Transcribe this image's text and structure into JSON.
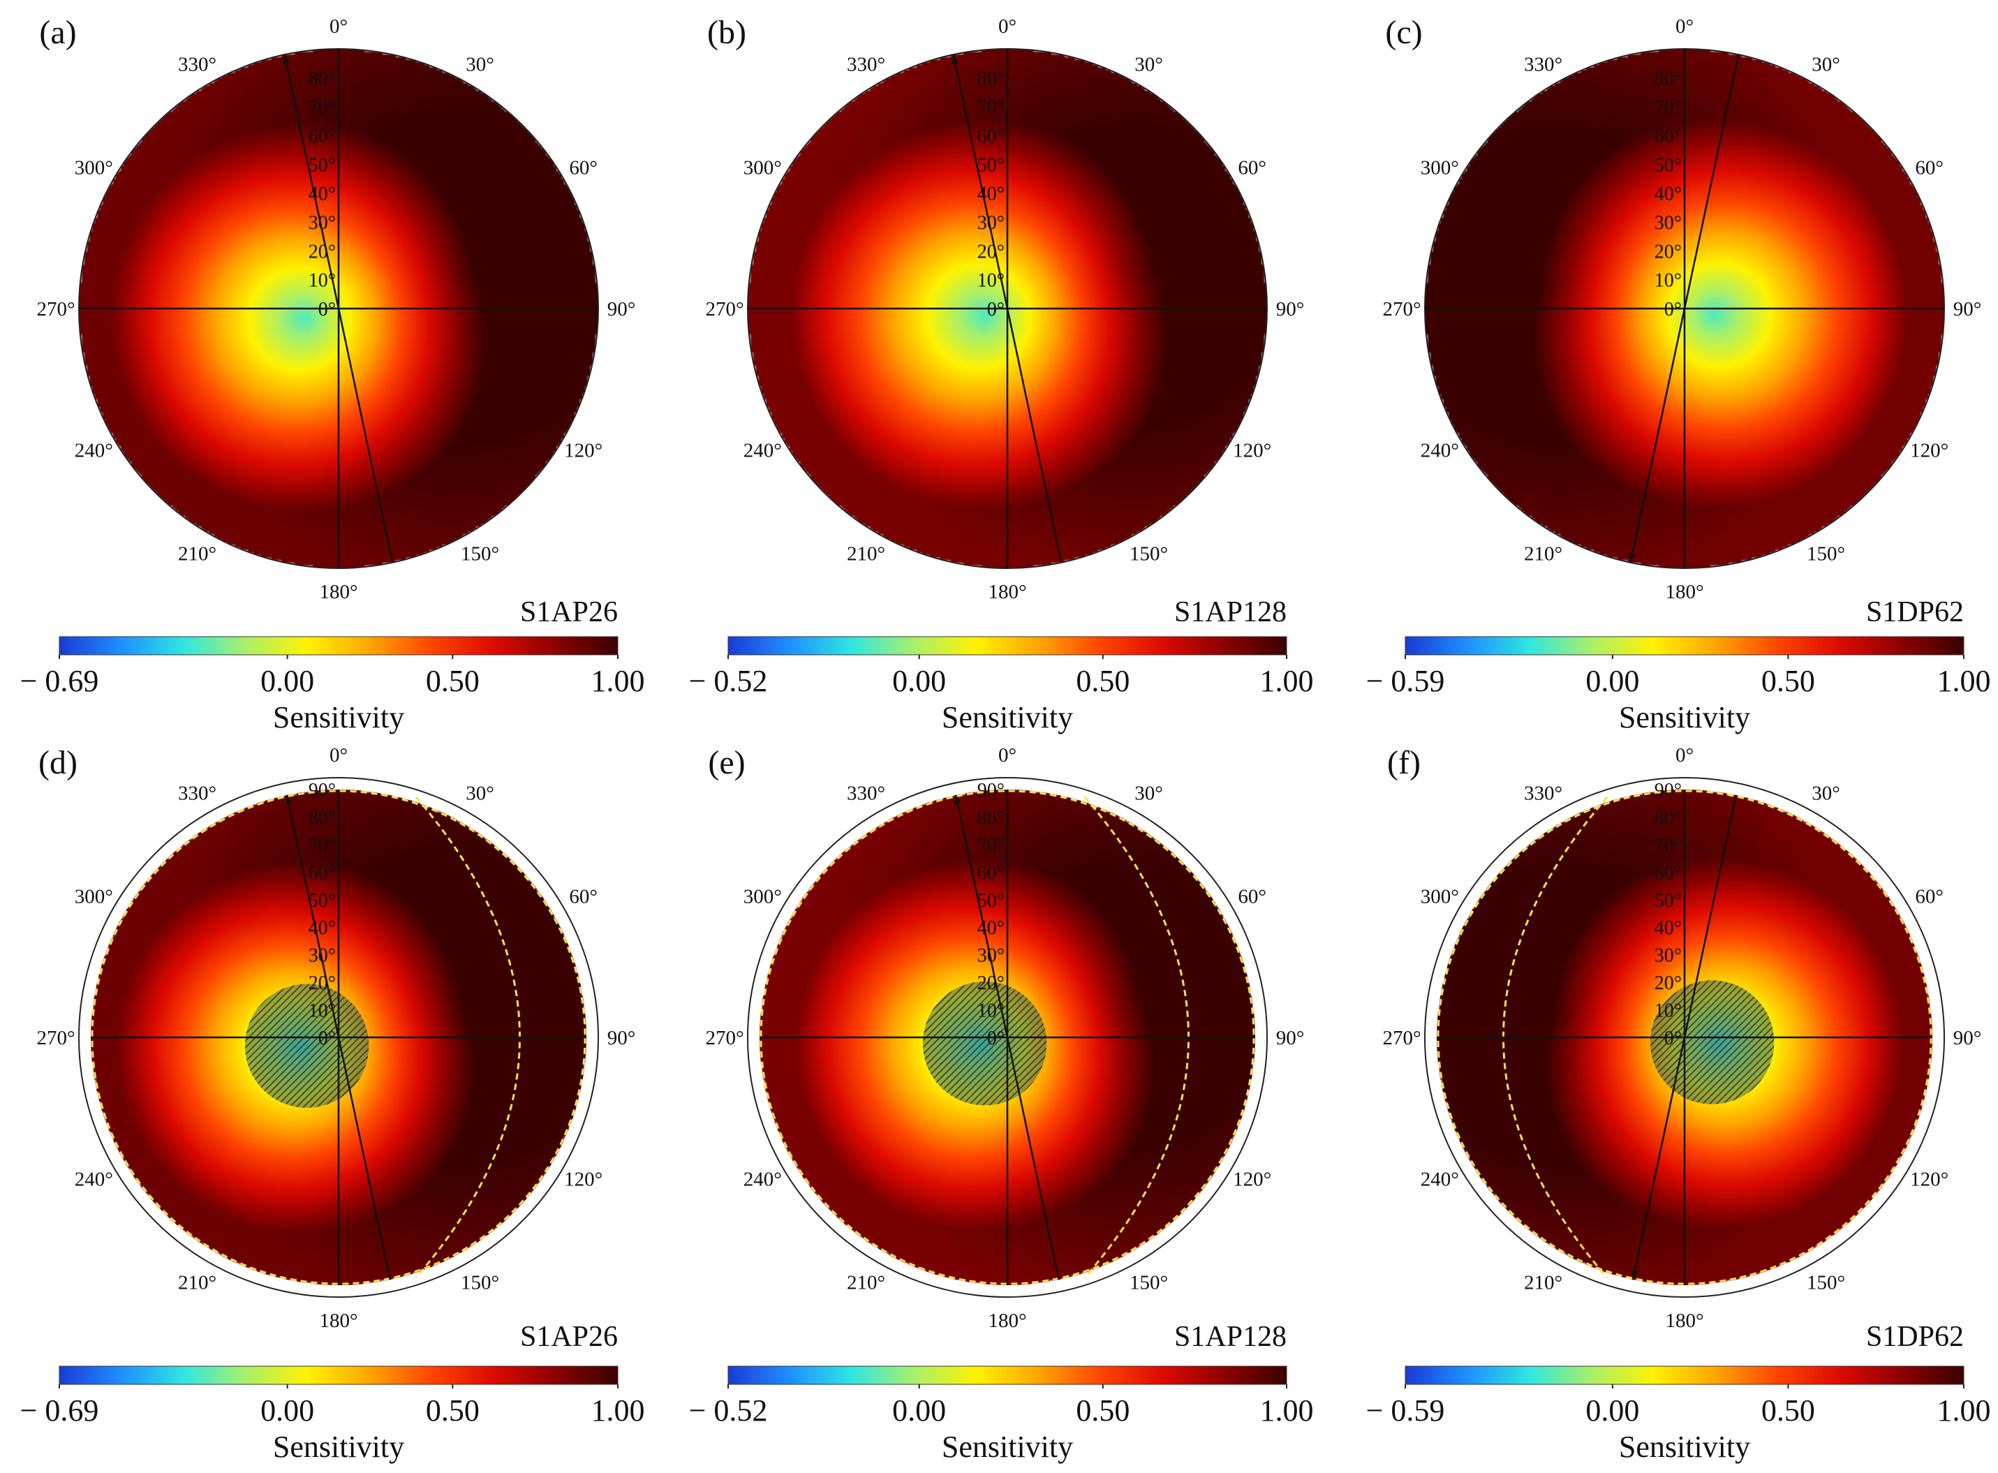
{
  "figure": {
    "colormap": [
      "#1a3bd6",
      "#1f8fff",
      "#2fe6e0",
      "#a8f06a",
      "#fff200",
      "#ffa500",
      "#ff4500",
      "#dd0a00",
      "#8b0000",
      "#3a0000"
    ]
  },
  "chart_data": [
    {
      "type": "heatmap",
      "panel": "(a)",
      "name": "S1AP26",
      "angular_ticks": [
        "0°",
        "30°",
        "60°",
        "90°",
        "120°",
        "150°",
        "180°",
        "210°",
        "240°",
        "270°",
        "300°",
        "330°"
      ],
      "radial_ticks": [
        "0°",
        "10°",
        "20°",
        "30°",
        "40°",
        "50°",
        "60°",
        "70°",
        "80°"
      ],
      "colorbar": {
        "min": -0.69,
        "max": 1.0,
        "tick_labels": [
          "− 0.69",
          "0.00",
          "0.50",
          "1.00"
        ],
        "tick_values": [
          -0.69,
          0.0,
          0.5,
          1.0
        ],
        "label": "Sensitivity"
      },
      "min_azimuth_deg": 255,
      "min_off_nadir_deg": 12,
      "max_azimuth_deg": 75,
      "flight_track_deg": 348,
      "line_of_sight_deg": 78,
      "hatched": false
    },
    {
      "type": "heatmap",
      "panel": "(b)",
      "name": "S1AP128",
      "angular_ticks": [
        "0°",
        "30°",
        "60°",
        "90°",
        "120°",
        "150°",
        "180°",
        "210°",
        "240°",
        "270°",
        "300°",
        "330°"
      ],
      "radial_ticks": [
        "0°",
        "10°",
        "20°",
        "30°",
        "40°",
        "50°",
        "60°",
        "70°",
        "80°"
      ],
      "colorbar": {
        "min": -0.52,
        "max": 1.0,
        "tick_labels": [
          "− 0.52",
          "0.00",
          "0.50",
          "1.00"
        ],
        "tick_values": [
          -0.52,
          0.0,
          0.5,
          1.0
        ],
        "label": "Sensitivity"
      },
      "min_azimuth_deg": 255,
      "min_off_nadir_deg": 8,
      "max_azimuth_deg": 75,
      "flight_track_deg": 348,
      "line_of_sight_deg": 78,
      "hatched": false
    },
    {
      "type": "heatmap",
      "panel": "(c)",
      "name": "S1DP62",
      "angular_ticks": [
        "0°",
        "30°",
        "60°",
        "90°",
        "120°",
        "150°",
        "180°",
        "210°",
        "240°",
        "270°",
        "300°",
        "330°"
      ],
      "radial_ticks": [
        "0°",
        "10°",
        "20°",
        "30°",
        "40°",
        "50°",
        "60°",
        "70°",
        "80°"
      ],
      "colorbar": {
        "min": -0.59,
        "max": 1.0,
        "tick_labels": [
          "− 0.59",
          "0.00",
          "0.50",
          "1.00"
        ],
        "tick_values": [
          -0.59,
          0.0,
          0.5,
          1.0
        ],
        "label": "Sensitivity"
      },
      "min_azimuth_deg": 100,
      "min_off_nadir_deg": 10,
      "max_azimuth_deg": 280,
      "flight_track_deg": 192,
      "line_of_sight_deg": 282,
      "hatched": false
    },
    {
      "type": "heatmap",
      "panel": "(d)",
      "name": "S1AP26",
      "angular_ticks": [
        "0°",
        "30°",
        "60°",
        "90°",
        "120°",
        "150°",
        "180°",
        "210°",
        "240°",
        "270°",
        "300°",
        "330°"
      ],
      "radial_ticks": [
        "0°",
        "10°",
        "20°",
        "30°",
        "40°",
        "50°",
        "60°",
        "70°",
        "80°",
        "90°"
      ],
      "colorbar": {
        "min": -0.69,
        "max": 1.0,
        "tick_labels": [
          "− 0.69",
          "0.00",
          "0.50",
          "1.00"
        ],
        "tick_values": [
          -0.69,
          0.0,
          0.5,
          1.0
        ],
        "label": "Sensitivity"
      },
      "min_azimuth_deg": 255,
      "min_off_nadir_deg": 14,
      "max_azimuth_deg": 75,
      "flight_track_deg": 348,
      "line_of_sight_deg": 78,
      "hatched": true
    },
    {
      "type": "heatmap",
      "panel": "(e)",
      "name": "S1AP128",
      "angular_ticks": [
        "0°",
        "30°",
        "60°",
        "90°",
        "120°",
        "150°",
        "180°",
        "210°",
        "240°",
        "270°",
        "300°",
        "330°"
      ],
      "radial_ticks": [
        "0°",
        "10°",
        "20°",
        "30°",
        "40°",
        "50°",
        "60°",
        "70°",
        "80°",
        "90°"
      ],
      "colorbar": {
        "min": -0.52,
        "max": 1.0,
        "tick_labels": [
          "− 0.52",
          "0.00",
          "0.50",
          "1.00"
        ],
        "tick_values": [
          -0.52,
          0.0,
          0.5,
          1.0
        ],
        "label": "Sensitivity"
      },
      "min_azimuth_deg": 255,
      "min_off_nadir_deg": 10,
      "max_azimuth_deg": 75,
      "flight_track_deg": 348,
      "line_of_sight_deg": 78,
      "hatched": true
    },
    {
      "type": "heatmap",
      "panel": "(f)",
      "name": "S1DP62",
      "angular_ticks": [
        "0°",
        "30°",
        "60°",
        "90°",
        "120°",
        "150°",
        "180°",
        "210°",
        "240°",
        "270°",
        "300°",
        "330°"
      ],
      "radial_ticks": [
        "0°",
        "10°",
        "20°",
        "30°",
        "40°",
        "50°",
        "60°",
        "70°",
        "80°",
        "90°"
      ],
      "colorbar": {
        "min": -0.59,
        "max": 1.0,
        "tick_labels": [
          "− 0.59",
          "0.00",
          "0.50",
          "1.00"
        ],
        "tick_values": [
          -0.59,
          0.0,
          0.5,
          1.0
        ],
        "label": "Sensitivity"
      },
      "min_azimuth_deg": 100,
      "min_off_nadir_deg": 12,
      "max_azimuth_deg": 280,
      "flight_track_deg": 192,
      "line_of_sight_deg": 282,
      "hatched": true
    }
  ]
}
